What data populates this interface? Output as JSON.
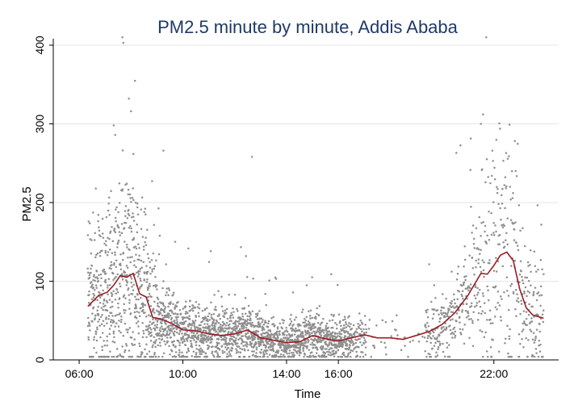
{
  "chart_data": {
    "type": "scatter",
    "title": "PM2.5 minute by minute, Addis Ababa",
    "xlabel": "Time",
    "ylabel": "PM2.5",
    "xlim": [
      "05:00",
      "24:30"
    ],
    "ylim": [
      0,
      400
    ],
    "x_ticks": [
      "06:00",
      "10:00",
      "14:00",
      "16:00",
      "22:00"
    ],
    "y_ticks": [
      0,
      100,
      200,
      300,
      400
    ],
    "grid": true,
    "legend": "none",
    "colors": {
      "points": "#8f8f8f",
      "smooth": "#9b1c24",
      "title": "#1f3a68"
    },
    "series": [
      {
        "kind": "smoothed-line",
        "points": [
          [
            "06:20",
            68
          ],
          [
            "06:45",
            82
          ],
          [
            "07:05",
            86
          ],
          [
            "07:20",
            95
          ],
          [
            "07:35",
            107
          ],
          [
            "07:50",
            105
          ],
          [
            "08:05",
            110
          ],
          [
            "08:20",
            84
          ],
          [
            "08:35",
            80
          ],
          [
            "08:50",
            54
          ],
          [
            "09:10",
            52
          ],
          [
            "09:35",
            46
          ],
          [
            "10:00",
            38
          ],
          [
            "10:30",
            37
          ],
          [
            "11:00",
            33
          ],
          [
            "11:30",
            31
          ],
          [
            "12:00",
            33
          ],
          [
            "12:30",
            38
          ],
          [
            "13:00",
            28
          ],
          [
            "13:30",
            25
          ],
          [
            "14:00",
            22
          ],
          [
            "14:30",
            23
          ],
          [
            "15:00",
            31
          ],
          [
            "15:30",
            27
          ],
          [
            "16:00",
            24
          ],
          [
            "16:30",
            28
          ],
          [
            "17:00",
            32
          ],
          [
            "17:30",
            28
          ],
          [
            "18:00",
            28
          ],
          [
            "18:30",
            26
          ],
          [
            "19:00",
            31
          ],
          [
            "19:30",
            36
          ],
          [
            "20:00",
            45
          ],
          [
            "20:30",
            60
          ],
          [
            "21:00",
            82
          ],
          [
            "21:30",
            110
          ],
          [
            "21:45",
            109
          ],
          [
            "22:00",
            120
          ],
          [
            "22:15",
            133
          ],
          [
            "22:30",
            137
          ],
          [
            "22:45",
            126
          ],
          [
            "23:00",
            90
          ],
          [
            "23:15",
            66
          ],
          [
            "23:30",
            57
          ],
          [
            "23:55",
            53
          ]
        ]
      }
    ]
  }
}
